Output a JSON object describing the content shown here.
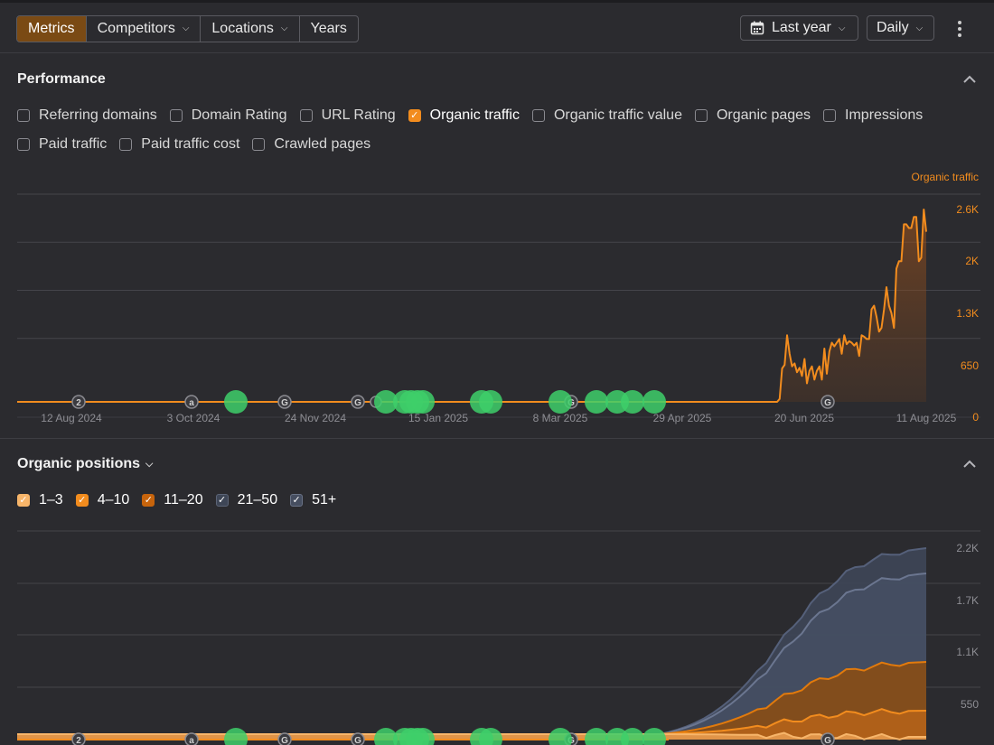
{
  "toolbar": {
    "tabs": [
      {
        "label": "Metrics",
        "active": true
      },
      {
        "label": "Competitors",
        "dropdown": true
      },
      {
        "label": "Locations",
        "dropdown": true
      },
      {
        "label": "Years"
      }
    ],
    "date_range": "Last year",
    "granularity": "Daily",
    "icons": {
      "calendar": "calendar-icon",
      "more": "more-vertical-icon"
    }
  },
  "performance": {
    "title": "Performance",
    "metrics": [
      {
        "label": "Referring domains",
        "checked": false
      },
      {
        "label": "Domain Rating",
        "checked": false
      },
      {
        "label": "URL Rating",
        "checked": false
      },
      {
        "label": "Organic traffic",
        "checked": true
      },
      {
        "label": "Organic traffic value",
        "checked": false
      },
      {
        "label": "Organic pages",
        "checked": false
      },
      {
        "label": "Impressions",
        "checked": false
      },
      {
        "label": "Paid traffic",
        "checked": false
      },
      {
        "label": "Paid traffic cost",
        "checked": false
      },
      {
        "label": "Crawled pages",
        "checked": false
      }
    ]
  },
  "positions": {
    "title": "Organic positions",
    "ranges": [
      {
        "label": "1–3",
        "checked": true,
        "color": "#f7b56a"
      },
      {
        "label": "4–10",
        "checked": true,
        "color": "#f28c1e"
      },
      {
        "label": "11–20",
        "checked": true,
        "color": "#c7640c"
      },
      {
        "label": "21–50",
        "checked": true,
        "color": "#3e4656"
      },
      {
        "label": "51+",
        "checked": true,
        "color": "#464e60"
      }
    ]
  },
  "chart_data": [
    {
      "type": "area",
      "title": "",
      "series": [
        {
          "name": "Organic traffic",
          "color": "#f28c1e"
        }
      ],
      "x_ticks": [
        "12 Aug 2024",
        "3 Oct 2024",
        "24 Nov 2024",
        "15 Jan 2025",
        "8 Mar 2025",
        "29 Apr 2025",
        "20 Jun 2025",
        "11 Aug 2025"
      ],
      "y_ticks": [
        "0",
        "650",
        "1.3K",
        "2K",
        "2.6K"
      ],
      "ylim": [
        0,
        2600
      ],
      "values": [
        0,
        0,
        0,
        0,
        0,
        0,
        0,
        0,
        0,
        0,
        0,
        0,
        0,
        0,
        0,
        0,
        0,
        0,
        0,
        0,
        0,
        0,
        0,
        0,
        0,
        0,
        0,
        0,
        0,
        0,
        0,
        0,
        0,
        0,
        0,
        0,
        0,
        0,
        0,
        0,
        0,
        0,
        0,
        0,
        0,
        0,
        0,
        0,
        0,
        0,
        0,
        0,
        0,
        0,
        0,
        0,
        0,
        0,
        0,
        0,
        0,
        0,
        0,
        0,
        0,
        0,
        0,
        0,
        0,
        0,
        0,
        0,
        0,
        0,
        0,
        0,
        0,
        0,
        0,
        0,
        0,
        0,
        0,
        0,
        0,
        0,
        0,
        0,
        0,
        0,
        0,
        0,
        0,
        0,
        0,
        0,
        0,
        0,
        0,
        0,
        0,
        0,
        0,
        0,
        0,
        0,
        0,
        0,
        0,
        0,
        0,
        0,
        0,
        0,
        0,
        0,
        0,
        0,
        0,
        0,
        0,
        0,
        0,
        0,
        0,
        0,
        0,
        0,
        0,
        0,
        0,
        0,
        0,
        0,
        0,
        0,
        0,
        0,
        0,
        0,
        0,
        0,
        0,
        0,
        0,
        0,
        0,
        0,
        0,
        0,
        0,
        0,
        0,
        0,
        0,
        0,
        0,
        0,
        0,
        0,
        0,
        0,
        0,
        0,
        0,
        0,
        0,
        0,
        0,
        0,
        0,
        0,
        0,
        0,
        0,
        0,
        0,
        0,
        0,
        0,
        0,
        0,
        0,
        0,
        0,
        0,
        0,
        0,
        0,
        0,
        0,
        0,
        0,
        0,
        0,
        0,
        0,
        0,
        0,
        0,
        0,
        0,
        0,
        0,
        0,
        0,
        0,
        0,
        0,
        0,
        0,
        0,
        0,
        0,
        0,
        0,
        0,
        0,
        0,
        0,
        0,
        0,
        0,
        0,
        0,
        0,
        0,
        0,
        0,
        0,
        0,
        0,
        0,
        0,
        0,
        0,
        0,
        0,
        0,
        0,
        0,
        0,
        0,
        0,
        0,
        0,
        0,
        0,
        0,
        0,
        0,
        0,
        0,
        0,
        0,
        0,
        0,
        0,
        0,
        0,
        0,
        0,
        0,
        0,
        0,
        0,
        0,
        0,
        0,
        0,
        0,
        0,
        0,
        0,
        0,
        0,
        0,
        0,
        0,
        0,
        0,
        0,
        0,
        0,
        0,
        40,
        450,
        500,
        900,
        650,
        480,
        520,
        400,
        460,
        350,
        580,
        250,
        420,
        480,
        300,
        420,
        480,
        300,
        720,
        380,
        680,
        800,
        750,
        800,
        850,
        650,
        900,
        780,
        820,
        800,
        760,
        800,
        620,
        900,
        880,
        850,
        850,
        1250,
        1300,
        1150,
        950,
        1000,
        1250,
        1550,
        1300,
        1200,
        1000,
        1800,
        1900,
        1900,
        2400,
        2400,
        2350,
        2350,
        2500,
        2500,
        1900,
        1950,
        2600,
        2300
      ],
      "markers": [
        {
          "x": "12 Aug 2024",
          "label": "2"
        },
        {
          "x": "3 Oct 2024",
          "label": "a"
        },
        {
          "x": "24 Nov 2024",
          "label": "G"
        },
        {
          "x": "8 Mar 2025",
          "label": "G"
        },
        {
          "x": "20 Jun 2025",
          "label": "G"
        }
      ]
    },
    {
      "type": "area",
      "title": "",
      "series": [
        {
          "name": "1–3",
          "color": "#f7b56a"
        },
        {
          "name": "4–10",
          "color": "#f28c1e"
        },
        {
          "name": "11–20",
          "color": "#c7640c"
        },
        {
          "name": "21–50",
          "color": "#3e4656"
        },
        {
          "name": "51+",
          "color": "#464e60"
        }
      ],
      "y_ticks": [
        "550",
        "1.1K",
        "1.7K",
        "2.2K"
      ],
      "ylim": [
        0,
        2200
      ]
    }
  ]
}
